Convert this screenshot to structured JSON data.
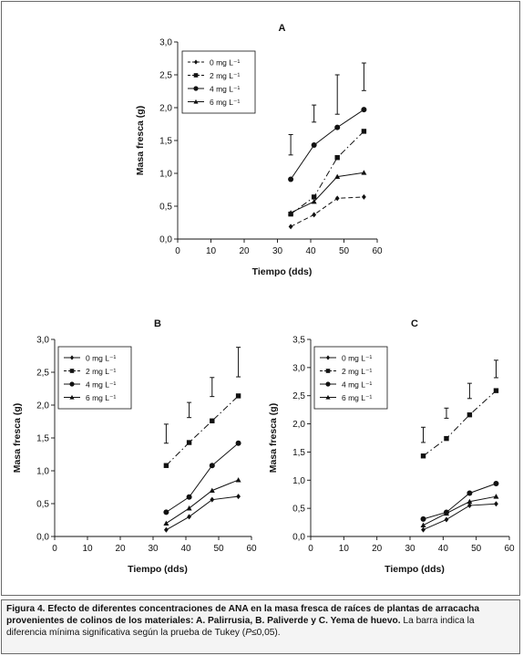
{
  "legend_labels": [
    "0 mg L⁻¹",
    "2 mg L⁻¹",
    "4 mg L⁻¹",
    "6 mg L⁻¹"
  ],
  "caption": {
    "label": "Figura 4.",
    "title": "Efecto de diferentes concentraciones de ANA en la masa fresca de raíces de plantas de arracacha provenientes de colinos de los materiales: A. Palirrusia, B. Paliverde y C. Yema de huevo.",
    "text": "La barra indica la diferencia mínima significativa según la prueba de Tukey (",
    "p_symbol": "P",
    "p_value": "≤0,05)."
  },
  "chart_data": [
    {
      "id": "A",
      "type": "line",
      "title": "A",
      "xlabel": "Tiempo (dds)",
      "ylabel": "Masa fresca (g)",
      "xlim": [
        0,
        60
      ],
      "ylim": [
        0,
        3.0
      ],
      "xticks": [
        "0",
        "10",
        "20",
        "30",
        "40",
        "50",
        "60"
      ],
      "yticks": [
        "0,0",
        "0,5",
        "1,0",
        "1,5",
        "2,0",
        "2,5",
        "3,0"
      ],
      "x": [
        34,
        41,
        48,
        56
      ],
      "series": [
        {
          "name": "0 mg L⁻¹",
          "marker": "diamond",
          "dash": "dashed",
          "values": [
            0.19,
            0.37,
            0.62,
            0.64
          ]
        },
        {
          "name": "2 mg L⁻¹",
          "marker": "square",
          "dash": "dashdot",
          "values": [
            0.38,
            0.64,
            1.24,
            1.64
          ]
        },
        {
          "name": "4 mg L⁻¹",
          "marker": "circle",
          "dash": "solid",
          "values": [
            0.91,
            1.43,
            1.7,
            1.97
          ]
        },
        {
          "name": "6 mg L⁻¹",
          "marker": "triangle",
          "dash": "solid",
          "values": [
            0.4,
            0.57,
            0.95,
            1.01
          ]
        }
      ],
      "lsd_bars": [
        {
          "x": 34,
          "low": 1.28,
          "high": 1.59
        },
        {
          "x": 41,
          "low": 1.78,
          "high": 2.04
        },
        {
          "x": 48,
          "low": 1.9,
          "high": 2.5
        },
        {
          "x": 56,
          "low": 2.26,
          "high": 2.68
        }
      ],
      "legend": "top-left"
    },
    {
      "id": "B",
      "type": "line",
      "title": "B",
      "xlabel": "Tiempo (dds)",
      "ylabel": "Masa fresca (g)",
      "xlim": [
        0,
        60
      ],
      "ylim": [
        0,
        3.0
      ],
      "xticks": [
        "0",
        "10",
        "20",
        "30",
        "40",
        "50",
        "60"
      ],
      "yticks": [
        "0,0",
        "0,5",
        "1,0",
        "1,5",
        "2,0",
        "2,5",
        "3,0"
      ],
      "x": [
        34,
        41,
        48,
        56
      ],
      "series": [
        {
          "name": "0 mg L⁻¹",
          "marker": "diamond",
          "dash": "solid",
          "values": [
            0.1,
            0.3,
            0.56,
            0.61
          ]
        },
        {
          "name": "2 mg L⁻¹",
          "marker": "square",
          "dash": "dashdot",
          "values": [
            1.08,
            1.43,
            1.76,
            2.14
          ]
        },
        {
          "name": "4 mg L⁻¹",
          "marker": "circle",
          "dash": "solid",
          "values": [
            0.37,
            0.6,
            1.08,
            1.42
          ]
        },
        {
          "name": "6 mg L⁻¹",
          "marker": "triangle",
          "dash": "solid",
          "values": [
            0.2,
            0.43,
            0.7,
            0.86
          ]
        }
      ],
      "lsd_bars": [
        {
          "x": 34,
          "low": 1.42,
          "high": 1.71
        },
        {
          "x": 41,
          "low": 1.81,
          "high": 2.04
        },
        {
          "x": 48,
          "low": 2.13,
          "high": 2.42
        },
        {
          "x": 56,
          "low": 2.43,
          "high": 2.88
        }
      ],
      "legend": "top-left"
    },
    {
      "id": "C",
      "type": "line",
      "title": "C",
      "xlabel": "Tiempo (dds)",
      "ylabel": "Masa fresca (g)",
      "xlim": [
        0,
        60
      ],
      "ylim": [
        0,
        3.5
      ],
      "xticks": [
        "0",
        "10",
        "20",
        "30",
        "40",
        "50",
        "60"
      ],
      "yticks": [
        "0,0",
        "0,5",
        "1,0",
        "1,5",
        "2,0",
        "2,5",
        "3,0",
        "3,5"
      ],
      "x": [
        34,
        41,
        48,
        56
      ],
      "series": [
        {
          "name": "0 mg L⁻¹",
          "marker": "diamond",
          "dash": "solid",
          "values": [
            0.12,
            0.3,
            0.55,
            0.58
          ]
        },
        {
          "name": "2 mg L⁻¹",
          "marker": "square",
          "dash": "dashdot",
          "values": [
            1.43,
            1.74,
            2.16,
            2.59
          ]
        },
        {
          "name": "4 mg L⁻¹",
          "marker": "circle",
          "dash": "solid",
          "values": [
            0.31,
            0.43,
            0.77,
            0.94
          ]
        },
        {
          "name": "6 mg L⁻¹",
          "marker": "triangle",
          "dash": "solid",
          "values": [
            0.2,
            0.41,
            0.62,
            0.71
          ]
        }
      ],
      "lsd_bars": [
        {
          "x": 34,
          "low": 1.67,
          "high": 1.94
        },
        {
          "x": 41,
          "low": 2.1,
          "high": 2.28
        },
        {
          "x": 48,
          "low": 2.45,
          "high": 2.72
        },
        {
          "x": 56,
          "low": 2.82,
          "high": 3.13
        }
      ],
      "legend": "top-left"
    }
  ]
}
